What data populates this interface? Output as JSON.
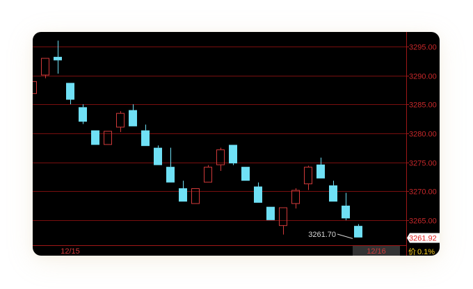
{
  "colors": {
    "background": "#000000",
    "grid": "#7a0f0f",
    "axis_line": "#a01818",
    "axis_text": "#c8282a",
    "up_candle": "#d23a3a",
    "down_candle": "#6fe0f5",
    "last_price_tag_bg": "#ffffff",
    "last_price_tag_text": "#e02020",
    "bottom_label": "#d23a3a",
    "pct_label": "#ffd21e"
  },
  "chart_data": {
    "type": "candlestick",
    "ylim": [
      3261.5,
      3297.5
    ],
    "yticks": [
      "3295.00",
      "3290.00",
      "3285.00",
      "3280.00",
      "3275.00",
      "3270.00",
      "3265.00"
    ],
    "ytick_values": [
      3295,
      3290,
      3285,
      3280,
      3275,
      3270,
      3265
    ],
    "x_labels": [
      {
        "text": "12/15",
        "index": 3
      },
      {
        "text": "12/16",
        "index": 26
      }
    ],
    "last_price_tag": "3261.92",
    "min_annotation": {
      "text": "3261.70",
      "index": 25,
      "value": 3261.7
    },
    "corner_price_label": "价",
    "corner_pct_label": "0.1%",
    "candles": [
      {
        "o": 3286.8,
        "h": 3289.0,
        "l": 3286.8,
        "c": 3289.0
      },
      {
        "o": 3290.0,
        "h": 3293.0,
        "l": 3289.5,
        "c": 3293.0
      },
      {
        "o": 3293.2,
        "h": 3296.0,
        "l": 3290.3,
        "c": 3292.6
      },
      {
        "o": 3288.7,
        "h": 3288.7,
        "l": 3285.0,
        "c": 3285.8
      },
      {
        "o": 3284.5,
        "h": 3285.0,
        "l": 3281.6,
        "c": 3282.0
      },
      {
        "o": 3280.5,
        "h": 3280.5,
        "l": 3278.0,
        "c": 3278.0
      },
      {
        "o": 3278.0,
        "h": 3280.4,
        "l": 3278.0,
        "c": 3280.4
      },
      {
        "o": 3281.0,
        "h": 3283.8,
        "l": 3280.2,
        "c": 3283.5
      },
      {
        "o": 3284.0,
        "h": 3285.0,
        "l": 3281.2,
        "c": 3281.2
      },
      {
        "o": 3280.5,
        "h": 3281.5,
        "l": 3277.8,
        "c": 3277.8
      },
      {
        "o": 3277.5,
        "h": 3277.9,
        "l": 3274.5,
        "c": 3274.5
      },
      {
        "o": 3274.2,
        "h": 3277.5,
        "l": 3271.5,
        "c": 3271.5
      },
      {
        "o": 3270.5,
        "h": 3271.8,
        "l": 3268.2,
        "c": 3268.2
      },
      {
        "o": 3267.8,
        "h": 3270.5,
        "l": 3267.8,
        "c": 3270.5
      },
      {
        "o": 3271.5,
        "h": 3274.5,
        "l": 3271.5,
        "c": 3274.2
      },
      {
        "o": 3274.5,
        "h": 3277.5,
        "l": 3273.5,
        "c": 3277.2
      },
      {
        "o": 3278.0,
        "h": 3278.0,
        "l": 3274.5,
        "c": 3274.8
      },
      {
        "o": 3274.2,
        "h": 3274.2,
        "l": 3271.8,
        "c": 3271.8
      },
      {
        "o": 3270.8,
        "h": 3271.5,
        "l": 3268.0,
        "c": 3268.0
      },
      {
        "o": 3267.3,
        "h": 3267.3,
        "l": 3265.0,
        "c": 3265.0
      },
      {
        "o": 3264.0,
        "h": 3267.2,
        "l": 3262.5,
        "c": 3267.2
      },
      {
        "o": 3267.8,
        "h": 3270.5,
        "l": 3267.0,
        "c": 3270.2
      },
      {
        "o": 3271.2,
        "h": 3274.4,
        "l": 3270.2,
        "c": 3274.2
      },
      {
        "o": 3274.6,
        "h": 3275.8,
        "l": 3272.2,
        "c": 3272.2
      },
      {
        "o": 3271.0,
        "h": 3271.8,
        "l": 3268.2,
        "c": 3268.2
      },
      {
        "o": 3267.5,
        "h": 3269.7,
        "l": 3265.0,
        "c": 3265.3
      },
      {
        "o": 3264.0,
        "h": 3264.3,
        "l": 3262.0,
        "c": 3262.0
      }
    ]
  }
}
